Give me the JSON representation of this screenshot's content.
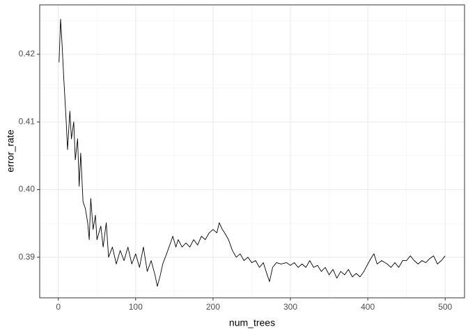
{
  "chart_data": {
    "type": "line",
    "x_label": "num_trees",
    "y_label": "error_rate",
    "x": [
      1,
      3,
      5,
      7,
      10,
      12,
      15,
      17,
      20,
      22,
      25,
      27,
      29,
      32,
      35,
      38,
      40,
      42,
      45,
      48,
      50,
      55,
      58,
      62,
      65,
      70,
      75,
      80,
      85,
      90,
      95,
      100,
      105,
      110,
      115,
      120,
      125,
      128,
      132,
      135,
      140,
      145,
      148,
      152,
      155,
      160,
      165,
      170,
      175,
      180,
      185,
      190,
      195,
      200,
      205,
      208,
      212,
      215,
      220,
      225,
      230,
      235,
      240,
      245,
      250,
      255,
      260,
      265,
      270,
      273,
      277,
      282,
      288,
      295,
      300,
      305,
      310,
      315,
      320,
      325,
      330,
      335,
      340,
      345,
      350,
      355,
      360,
      365,
      370,
      375,
      380,
      385,
      390,
      395,
      400,
      405,
      408,
      412,
      418,
      425,
      430,
      435,
      440,
      445,
      450,
      455,
      460,
      465,
      470,
      475,
      480,
      485,
      490,
      495,
      500
    ],
    "values": [
      0.4188,
      0.4252,
      0.4213,
      0.4167,
      0.4106,
      0.4059,
      0.4116,
      0.4075,
      0.41,
      0.4044,
      0.4075,
      0.4005,
      0.4054,
      0.3982,
      0.3972,
      0.3951,
      0.3926,
      0.3987,
      0.3941,
      0.3962,
      0.3926,
      0.3946,
      0.3915,
      0.3951,
      0.39,
      0.3915,
      0.389,
      0.391,
      0.3895,
      0.3915,
      0.389,
      0.3905,
      0.3885,
      0.3915,
      0.3879,
      0.3895,
      0.3874,
      0.3857,
      0.3874,
      0.389,
      0.3905,
      0.3921,
      0.3931,
      0.3915,
      0.3926,
      0.3915,
      0.3921,
      0.3915,
      0.3926,
      0.3918,
      0.3931,
      0.3926,
      0.3936,
      0.3941,
      0.3936,
      0.3951,
      0.3941,
      0.3936,
      0.3926,
      0.391,
      0.39,
      0.3905,
      0.3895,
      0.39,
      0.3892,
      0.3895,
      0.3885,
      0.3892,
      0.3874,
      0.3864,
      0.3885,
      0.3892,
      0.389,
      0.3892,
      0.3888,
      0.3892,
      0.3885,
      0.389,
      0.3885,
      0.3895,
      0.3885,
      0.3888,
      0.3879,
      0.3885,
      0.3874,
      0.3882,
      0.3869,
      0.3879,
      0.3874,
      0.3882,
      0.3871,
      0.3876,
      0.3871,
      0.3879,
      0.389,
      0.39,
      0.3905,
      0.389,
      0.3895,
      0.389,
      0.3885,
      0.3892,
      0.3885,
      0.3895,
      0.3895,
      0.3902,
      0.3895,
      0.389,
      0.3895,
      0.3892,
      0.3898,
      0.3902,
      0.389,
      0.3895,
      0.3902
    ],
    "color": "#000000",
    "xlim": [
      -24,
      525
    ],
    "ylim": [
      0.384,
      0.4273
    ],
    "xticks": [
      0,
      100,
      200,
      300,
      400,
      500
    ],
    "yticks": [
      0.39,
      {
        "value": 0.4,
        "label": "0.40"
      },
      0.41,
      0.42
    ],
    "x_minor_grid": [
      50,
      150,
      250,
      350,
      450
    ],
    "y_minor_grid": [
      0.385,
      0.395,
      0.405,
      0.415,
      0.425
    ],
    "grid": true
  }
}
